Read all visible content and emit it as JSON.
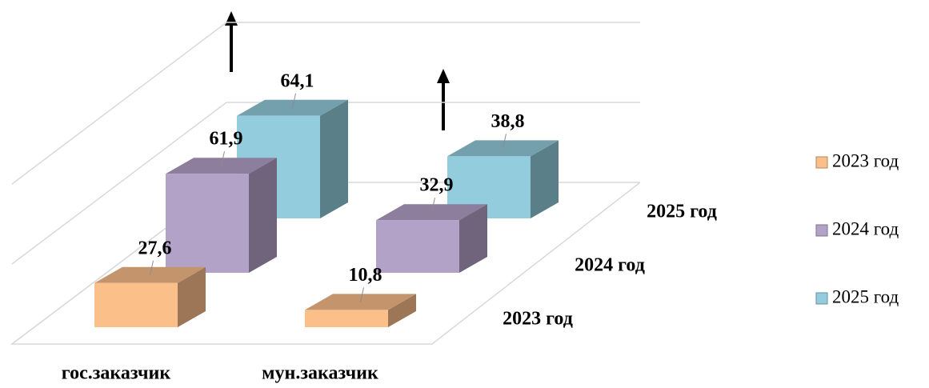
{
  "chart_data": {
    "type": "bar3d",
    "categories": [
      "гос.заказчик",
      "мун.заказчик"
    ],
    "series": [
      {
        "name": "2023 год",
        "color": "#fbbf8a",
        "values": [
          27.6,
          10.8
        ],
        "value_labels": [
          "27,6",
          "10,8"
        ]
      },
      {
        "name": "2024 год",
        "color": "#b3a2c8",
        "values": [
          61.9,
          32.9
        ],
        "value_labels": [
          "61,9",
          "32,9"
        ]
      },
      {
        "name": "2025 год",
        "color": "#93cddd",
        "values": [
          64.1,
          38.8
        ],
        "value_labels": [
          "64,1",
          "38,8"
        ]
      }
    ],
    "ylim": [
      0,
      100
    ],
    "yticks": [
      0,
      50,
      100
    ],
    "grid": true,
    "legend": "right"
  }
}
